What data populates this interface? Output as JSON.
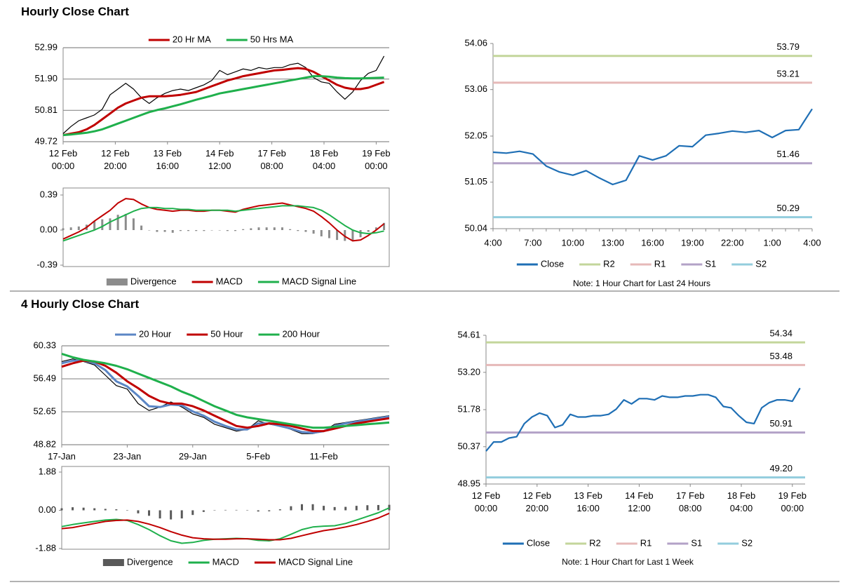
{
  "sections": [
    {
      "title": "Hourly Close Chart"
    },
    {
      "title": "4 Hourly Close Chart"
    }
  ],
  "chart_data": [
    {
      "type": "line",
      "grid": true,
      "x": [
        0,
        3,
        6,
        9,
        12,
        15,
        18,
        21,
        24,
        27,
        30,
        33,
        36,
        39,
        42,
        45,
        48,
        51,
        54,
        57,
        60,
        63,
        66,
        69,
        72,
        75,
        78,
        81,
        84,
        87,
        90,
        93,
        96,
        99,
        102,
        105,
        108,
        111,
        114,
        117,
        120,
        123
      ],
      "xlim": [
        0,
        125
      ],
      "xticks": [
        {
          "value": 0,
          "label": "12 Feb\n00:00"
        },
        {
          "value": 20,
          "label": "12 Feb\n20:00"
        },
        {
          "value": 40,
          "label": "13 Feb\n16:00"
        },
        {
          "value": 60,
          "label": "14 Feb\n12:00"
        },
        {
          "value": 80,
          "label": "17 Feb\n08:00"
        },
        {
          "value": 100,
          "label": "18 Feb\n04:00"
        },
        {
          "value": 120,
          "label": "19 Feb\n00:00"
        }
      ],
      "ylim": [
        49.72,
        52.99
      ],
      "yticks": [
        49.72,
        50.81,
        {
          "value": 51.9,
          "label": "51.90"
        },
        52.99
      ],
      "price": [
        50.0,
        50.25,
        50.45,
        50.55,
        50.65,
        50.85,
        51.35,
        51.55,
        51.75,
        51.55,
        51.25,
        51.05,
        51.25,
        51.4,
        51.5,
        51.55,
        51.5,
        51.6,
        51.7,
        51.85,
        52.2,
        52.05,
        52.15,
        52.25,
        52.2,
        52.3,
        52.25,
        52.3,
        52.3,
        52.4,
        52.45,
        52.3,
        51.95,
        51.8,
        51.75,
        51.45,
        51.2,
        51.45,
        51.85,
        52.1,
        52.2,
        52.7
      ],
      "series": [
        {
          "name": "20 Hr MA",
          "color": "#c00000",
          "values": [
            49.95,
            50.0,
            50.05,
            50.15,
            50.3,
            50.5,
            50.7,
            50.9,
            51.05,
            51.15,
            51.25,
            51.3,
            51.3,
            51.3,
            51.32,
            51.35,
            51.4,
            51.45,
            51.55,
            51.65,
            51.75,
            51.85,
            51.92,
            52.0,
            52.05,
            52.1,
            52.15,
            52.2,
            52.22,
            52.25,
            52.28,
            52.25,
            52.15,
            52.0,
            51.85,
            51.7,
            51.6,
            51.55,
            51.55,
            51.6,
            51.7,
            51.8
          ]
        },
        {
          "name": "50 Hrs MA",
          "color": "#1fb04c",
          "values": [
            49.95,
            49.97,
            50.0,
            50.03,
            50.08,
            50.15,
            50.25,
            50.35,
            50.45,
            50.55,
            50.65,
            50.75,
            50.82,
            50.88,
            50.95,
            51.02,
            51.1,
            51.18,
            51.25,
            51.32,
            51.4,
            51.45,
            51.5,
            51.55,
            51.6,
            51.65,
            51.7,
            51.75,
            51.8,
            51.85,
            51.9,
            51.95,
            52.0,
            52.0,
            51.98,
            51.95,
            51.93,
            51.92,
            51.92,
            51.93,
            51.94,
            51.95
          ]
        }
      ]
    },
    {
      "type": "combo",
      "grid": false,
      "x": [
        0,
        3,
        6,
        9,
        12,
        15,
        18,
        21,
        24,
        27,
        30,
        33,
        36,
        39,
        42,
        45,
        48,
        51,
        54,
        57,
        60,
        63,
        66,
        69,
        72,
        75,
        78,
        81,
        84,
        87,
        90,
        93,
        96,
        99,
        102,
        105,
        108,
        111,
        114,
        117,
        120,
        123
      ],
      "xlim": [
        0,
        125
      ],
      "ylim": [
        -0.39,
        0.39
      ],
      "yticks": [
        -0.39,
        {
          "value": 0,
          "label": "0.00"
        },
        0.39
      ],
      "series": [
        {
          "name": "Divergence",
          "kind": "bar",
          "color": "#8c8c8c",
          "values": [
            0.02,
            0.03,
            0.04,
            0.06,
            0.1,
            0.12,
            0.13,
            0.17,
            0.18,
            0.13,
            0.05,
            0.0,
            -0.02,
            -0.02,
            -0.03,
            -0.01,
            -0.01,
            -0.01,
            -0.01,
            0.0,
            0.0,
            -0.01,
            -0.01,
            0.01,
            0.02,
            0.03,
            0.03,
            0.03,
            0.03,
            0.01,
            -0.01,
            -0.02,
            -0.04,
            -0.07,
            -0.09,
            -0.11,
            -0.12,
            -0.12,
            -0.08,
            -0.02,
            0.03,
            0.08
          ]
        },
        {
          "name": "MACD",
          "kind": "line",
          "color": "#c00000",
          "values": [
            -0.1,
            -0.06,
            -0.02,
            0.03,
            0.1,
            0.16,
            0.22,
            0.3,
            0.35,
            0.34,
            0.29,
            0.25,
            0.23,
            0.22,
            0.21,
            0.22,
            0.22,
            0.21,
            0.21,
            0.22,
            0.22,
            0.21,
            0.2,
            0.23,
            0.25,
            0.27,
            0.28,
            0.29,
            0.3,
            0.28,
            0.26,
            0.24,
            0.21,
            0.15,
            0.08,
            0.0,
            -0.07,
            -0.12,
            -0.11,
            -0.06,
            0.0,
            0.07
          ]
        },
        {
          "name": "MACD Signal Line",
          "kind": "line",
          "color": "#1fb04c",
          "values": [
            -0.12,
            -0.09,
            -0.06,
            -0.03,
            0.0,
            0.04,
            0.09,
            0.13,
            0.17,
            0.21,
            0.24,
            0.25,
            0.25,
            0.24,
            0.24,
            0.23,
            0.23,
            0.22,
            0.22,
            0.22,
            0.22,
            0.22,
            0.21,
            0.22,
            0.23,
            0.24,
            0.25,
            0.26,
            0.27,
            0.27,
            0.27,
            0.26,
            0.25,
            0.22,
            0.17,
            0.11,
            0.05,
            0.0,
            -0.03,
            -0.04,
            -0.03,
            -0.01
          ]
        }
      ]
    },
    {
      "type": "line",
      "grid": false,
      "categories": [
        "4:00",
        null,
        null,
        "7:00",
        null,
        null,
        "10:00",
        null,
        null,
        "13:00",
        null,
        null,
        "16:00",
        null,
        null,
        "19:00",
        null,
        null,
        "22:00",
        null,
        null,
        "1:00",
        null,
        null,
        "4:00"
      ],
      "ylim": [
        50.04,
        54.06
      ],
      "yticks": [
        50.04,
        51.05,
        52.05,
        53.06,
        54.06
      ],
      "series": [
        {
          "name": "Close",
          "color": "#1f6fb5",
          "values": [
            51.7,
            51.68,
            51.72,
            51.66,
            51.4,
            51.27,
            51.2,
            51.3,
            51.14,
            51.0,
            51.09,
            51.62,
            51.53,
            51.62,
            51.84,
            51.82,
            52.07,
            52.11,
            52.16,
            52.13,
            52.17,
            52.02,
            52.17,
            52.19,
            52.64
          ]
        }
      ],
      "levels": [
        {
          "name": "R2",
          "color": "#c3d69b",
          "value": 53.79
        },
        {
          "name": "R1",
          "color": "#e6b9b8",
          "value": 53.21
        },
        {
          "name": "S1",
          "color": "#b3a2c7",
          "value": 51.46
        },
        {
          "name": "S2",
          "color": "#93cddd",
          "value": 50.29
        }
      ],
      "note": "Note: 1 Hour Chart for Last 24 Hours"
    },
    {
      "type": "line",
      "grid": true,
      "x": [
        0,
        5,
        10,
        15,
        20,
        25,
        30,
        35,
        40,
        45,
        50,
        55,
        60,
        65,
        70,
        75,
        80,
        85,
        90,
        95,
        100,
        105,
        110,
        115,
        120,
        125,
        130,
        135,
        140,
        145,
        150
      ],
      "xlim": [
        0,
        150
      ],
      "xticks": [
        {
          "value": 0,
          "label": "17-Jan"
        },
        {
          "value": 30,
          "label": "23-Jan"
        },
        {
          "value": 60,
          "label": "29-Jan"
        },
        {
          "value": 90,
          "label": "5-Feb"
        },
        {
          "value": 120,
          "label": "11-Feb"
        }
      ],
      "ylim": [
        48.82,
        60.33
      ],
      "yticks": [
        48.82,
        52.65,
        56.49,
        60.33
      ],
      "price": [
        58.5,
        58.8,
        58.5,
        58.1,
        56.9,
        55.7,
        55.3,
        53.6,
        52.8,
        53.2,
        53.8,
        53.2,
        52.4,
        52.0,
        51.2,
        50.8,
        50.4,
        50.6,
        51.6,
        51.2,
        51.0,
        50.6,
        50.1,
        50.1,
        50.4,
        51.2,
        51.4,
        51.6,
        51.8,
        52.0,
        52.2
      ],
      "series": [
        {
          "name": "20 Hour",
          "color": "#5b86c5",
          "values": [
            58.3,
            58.6,
            58.6,
            58.3,
            57.5,
            56.2,
            55.6,
            54.5,
            53.3,
            53.2,
            53.5,
            53.4,
            52.7,
            52.2,
            51.5,
            51.0,
            50.6,
            50.6,
            51.3,
            51.3,
            51.0,
            50.7,
            50.3,
            50.2,
            50.4,
            51.0,
            51.3,
            51.5,
            51.7,
            51.9,
            52.1
          ]
        },
        {
          "name": "50 Hour",
          "color": "#c00000",
          "values": [
            57.9,
            58.3,
            58.6,
            58.5,
            58.0,
            57.2,
            56.2,
            55.4,
            54.5,
            53.9,
            53.6,
            53.6,
            53.3,
            52.8,
            52.2,
            51.6,
            51.0,
            50.8,
            51.0,
            51.3,
            51.2,
            51.0,
            50.7,
            50.4,
            50.4,
            50.7,
            51.0,
            51.3,
            51.5,
            51.7,
            51.9
          ]
        },
        {
          "name": "200 Hour",
          "color": "#1fb04c",
          "values": [
            59.4,
            59.0,
            58.7,
            58.5,
            58.3,
            58.0,
            57.6,
            57.1,
            56.6,
            56.1,
            55.6,
            55.0,
            54.5,
            53.9,
            53.3,
            52.8,
            52.3,
            52.0,
            51.8,
            51.6,
            51.4,
            51.2,
            51.0,
            50.8,
            50.8,
            50.9,
            51.0,
            51.1,
            51.2,
            51.3,
            51.4
          ]
        }
      ]
    },
    {
      "type": "combo",
      "grid": false,
      "x": [
        0,
        5,
        10,
        15,
        20,
        25,
        30,
        35,
        40,
        45,
        50,
        55,
        60,
        65,
        70,
        75,
        80,
        85,
        90,
        95,
        100,
        105,
        110,
        115,
        120,
        125,
        130,
        135,
        140,
        145,
        150
      ],
      "xlim": [
        0,
        150
      ],
      "ylim": [
        -1.88,
        1.88
      ],
      "yticks": [
        -1.88,
        {
          "value": 0,
          "label": "0.00"
        },
        1.88
      ],
      "series": [
        {
          "name": "Divergence",
          "kind": "bar",
          "color": "#595959",
          "values": [
            0.1,
            0.15,
            0.13,
            0.1,
            0.07,
            0.05,
            -0.02,
            -0.15,
            -0.27,
            -0.4,
            -0.45,
            -0.4,
            -0.23,
            -0.08,
            0.0,
            0.02,
            0.02,
            0.0,
            -0.06,
            -0.05,
            0.05,
            0.2,
            0.3,
            0.3,
            0.22,
            0.16,
            0.17,
            0.22,
            0.25,
            0.26,
            0.27
          ]
        },
        {
          "name": "MACD",
          "kind": "line",
          "color": "#1fb04c",
          "values": [
            -0.8,
            -0.7,
            -0.62,
            -0.55,
            -0.48,
            -0.45,
            -0.5,
            -0.7,
            -0.95,
            -1.25,
            -1.5,
            -1.62,
            -1.58,
            -1.48,
            -1.42,
            -1.4,
            -1.38,
            -1.4,
            -1.48,
            -1.5,
            -1.4,
            -1.18,
            -0.95,
            -0.82,
            -0.78,
            -0.76,
            -0.65,
            -0.48,
            -0.3,
            -0.12,
            0.12
          ]
        },
        {
          "name": "MACD Signal Line",
          "kind": "line",
          "color": "#c00000",
          "values": [
            -0.9,
            -0.85,
            -0.75,
            -0.65,
            -0.55,
            -0.5,
            -0.48,
            -0.55,
            -0.68,
            -0.85,
            -1.05,
            -1.22,
            -1.35,
            -1.4,
            -1.42,
            -1.42,
            -1.4,
            -1.4,
            -1.42,
            -1.45,
            -1.45,
            -1.38,
            -1.25,
            -1.12,
            -1.0,
            -0.92,
            -0.82,
            -0.7,
            -0.55,
            -0.38,
            -0.15
          ]
        }
      ]
    },
    {
      "type": "line",
      "grid": false,
      "x": [
        0,
        3,
        6,
        9,
        12,
        15,
        18,
        21,
        24,
        27,
        30,
        33,
        36,
        39,
        42,
        45,
        48,
        51,
        54,
        57,
        60,
        63,
        66,
        69,
        72,
        75,
        78,
        81,
        84,
        87,
        90,
        93,
        96,
        99,
        102,
        105,
        108,
        111,
        114,
        117,
        120,
        123
      ],
      "xlim": [
        0,
        125
      ],
      "xticks": [
        {
          "value": 0,
          "label": "12 Feb\n00:00"
        },
        {
          "value": 20,
          "label": "12 Feb\n20:00"
        },
        {
          "value": 40,
          "label": "13 Feb\n16:00"
        },
        {
          "value": 60,
          "label": "14 Feb\n12:00"
        },
        {
          "value": 80,
          "label": "17 Feb\n08:00"
        },
        {
          "value": 100,
          "label": "18 Feb\n04:00"
        },
        {
          "value": 120,
          "label": "19 Feb\n00:00"
        }
      ],
      "ylim": [
        48.95,
        54.61
      ],
      "yticks": [
        48.95,
        50.37,
        51.78,
        {
          "value": 53.2,
          "label": "53.20"
        },
        54.61
      ],
      "series": [
        {
          "name": "Close",
          "color": "#1f6fb5",
          "values": [
            50.2,
            50.55,
            50.55,
            50.7,
            50.75,
            51.25,
            51.5,
            51.65,
            51.55,
            51.1,
            51.2,
            51.6,
            51.5,
            51.5,
            51.55,
            51.55,
            51.6,
            51.8,
            52.15,
            52.0,
            52.2,
            52.2,
            52.15,
            52.3,
            52.25,
            52.25,
            52.3,
            52.3,
            52.35,
            52.35,
            52.25,
            51.9,
            51.85,
            51.55,
            51.3,
            51.25,
            51.85,
            52.05,
            52.15,
            52.15,
            52.1,
            52.6
          ]
        }
      ],
      "levels": [
        {
          "name": "R2",
          "color": "#c3d69b",
          "value": 54.34
        },
        {
          "name": "R1",
          "color": "#e6b9b8",
          "value": 53.48
        },
        {
          "name": "S1",
          "color": "#b3a2c7",
          "value": 50.91
        },
        {
          "name": "S2",
          "color": "#93cddd",
          "value": 49.2,
          "value_label": "49.20"
        }
      ],
      "note": "Note: 1 Hour Chart for Last 1 Week"
    }
  ]
}
